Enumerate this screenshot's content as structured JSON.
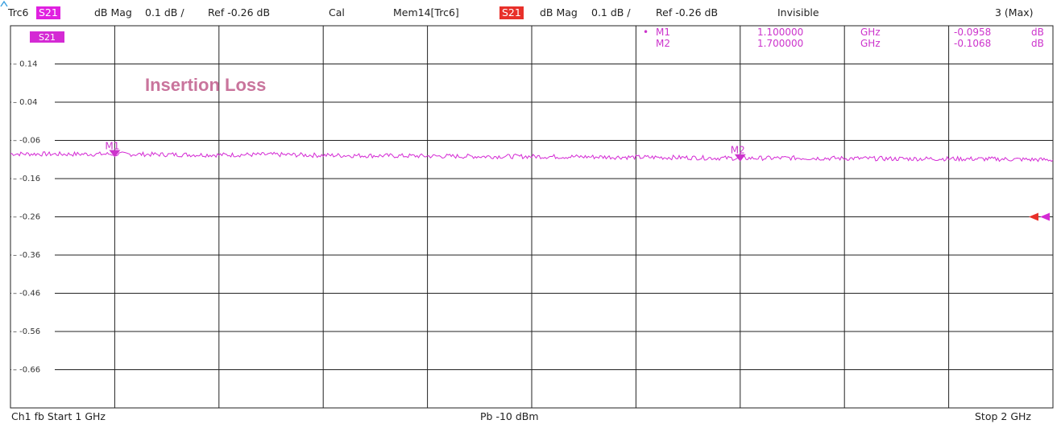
{
  "header": {
    "trace": "Trc6",
    "param": "S21",
    "format": "dB Mag",
    "scale": "0.1 dB /",
    "ref": "Ref -0.26 dB",
    "cal": "Cal",
    "mem": "Mem14[Trc6]",
    "mem_param": "S21",
    "mem_format": "dB Mag",
    "mem_scale": "0.1 dB /",
    "mem_ref": "Ref -0.26 dB",
    "invisible": "Invisible",
    "max": "3 (Max)"
  },
  "trace_label": "S21",
  "annotation": "Insertion Loss",
  "markers": [
    {
      "label": "M1",
      "freq": "1.100000",
      "unit": "GHz",
      "value": "-0.0958",
      "vunit": "dB",
      "active": true
    },
    {
      "label": "M2",
      "freq": "1.700000",
      "unit": "GHz",
      "value": "-0.1068",
      "vunit": "dB",
      "active": false
    }
  ],
  "footer": {
    "left": "Ch1  fb  Start  1 GHz",
    "center": "Pb  -10 dBm",
    "right": "Stop  2 GHz"
  },
  "colors": {
    "trace": "#d42ad4",
    "marker": "#cc33cc",
    "ref_red": "#e8302a",
    "grid": "#222222",
    "annotation": "#c9749c"
  },
  "chart_data": {
    "type": "line",
    "x_start_ghz": 1,
    "x_stop_ghz": 2,
    "ref_level_db": -0.26,
    "scale_db_per_div": 0.1,
    "y_tick_labels": [
      "0.14",
      "0.04",
      "-0.06",
      "-0.16",
      "-0.26",
      "-0.36",
      "-0.46",
      "-0.56",
      "-0.66"
    ],
    "ylim": [
      -0.76,
      0.24
    ],
    "series": [
      {
        "name": "S21",
        "x": [
          1.0,
          1.05,
          1.1,
          1.15,
          1.2,
          1.25,
          1.3,
          1.35,
          1.4,
          1.45,
          1.5,
          1.55,
          1.6,
          1.65,
          1.7,
          1.75,
          1.8,
          1.85,
          1.9,
          1.95,
          2.0
        ],
        "values": [
          -0.095,
          -0.096,
          -0.0958,
          -0.097,
          -0.098,
          -0.097,
          -0.099,
          -0.1,
          -0.101,
          -0.102,
          -0.102,
          -0.103,
          -0.104,
          -0.105,
          -0.1068,
          -0.106,
          -0.107,
          -0.108,
          -0.108,
          -0.109,
          -0.111
        ]
      }
    ],
    "markers": [
      {
        "label": "M1",
        "x": 1.1,
        "y": -0.0958
      },
      {
        "label": "M2",
        "x": 1.7,
        "y": -0.1068
      }
    ]
  }
}
